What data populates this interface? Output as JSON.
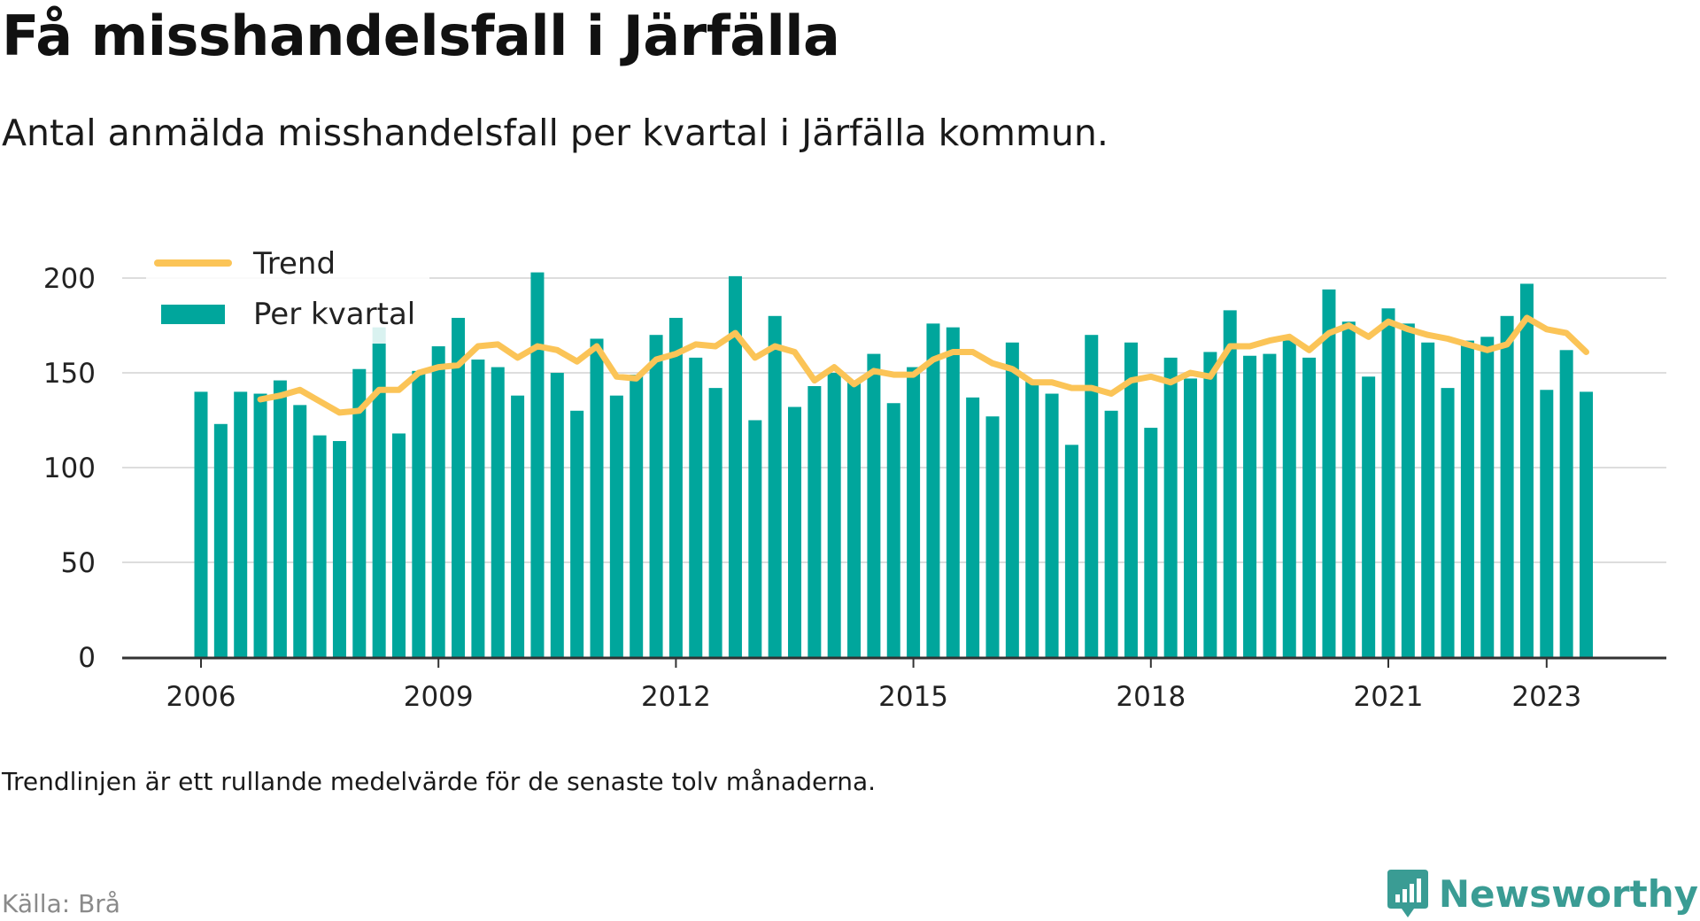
{
  "title": "Få misshandelsfall i Järfälla",
  "subtitle": "Antal anmälda misshandelsfall per kvartal i Järfälla kommun.",
  "note": "Trendlinjen är ett rullande medelvärde för de senaste tolv månaderna.",
  "source": "Källa: Brå",
  "brand": {
    "name": "Newsworthy",
    "icon": "newsworthy-logo-icon"
  },
  "colors": {
    "bars": "#00a69c",
    "trend": "#fbc457",
    "grid": "#dddddd",
    "axis": "#333333"
  },
  "legend": {
    "trend": "Trend",
    "bars": "Per kvartal"
  },
  "chart_data": {
    "type": "bar",
    "x_start": "2006 Q1",
    "x_tick_labels": [
      "2006",
      "2009",
      "2012",
      "2015",
      "2018",
      "2021",
      "2023"
    ],
    "y_ticks": [
      0,
      50,
      100,
      150,
      200
    ],
    "ylim": [
      0,
      215
    ],
    "grid": true,
    "legend_position": "top-left",
    "series": [
      {
        "name": "Per kvartal",
        "type": "bar",
        "values": [
          140,
          123,
          140,
          139,
          146,
          133,
          117,
          114,
          152,
          174,
          118,
          151,
          164,
          179,
          157,
          153,
          138,
          203,
          150,
          130,
          168,
          138,
          149,
          170,
          179,
          158,
          142,
          201,
          125,
          180,
          132,
          143,
          150,
          146,
          160,
          134,
          153,
          176,
          174,
          137,
          127,
          166,
          146,
          139,
          112,
          170,
          130,
          166,
          121,
          158,
          147,
          161,
          183,
          159,
          160,
          168,
          158,
          194,
          177,
          148,
          184,
          176,
          166,
          142,
          167,
          169,
          180,
          197,
          141,
          162,
          140
        ]
      },
      {
        "name": "Trend",
        "type": "line",
        "start_index": 3,
        "values": [
          136,
          138,
          141,
          135,
          129,
          130,
          141,
          141,
          150,
          153,
          154,
          164,
          165,
          158,
          164,
          162,
          156,
          164,
          148,
          147,
          157,
          160,
          165,
          164,
          171,
          158,
          164,
          161,
          146,
          153,
          144,
          151,
          149,
          149,
          157,
          161,
          161,
          155,
          152,
          145,
          145,
          142,
          142,
          139,
          146,
          148,
          145,
          150,
          148,
          164,
          164,
          167,
          169,
          162,
          171,
          175,
          169,
          177,
          173,
          170,
          168,
          165,
          162,
          165,
          179,
          173,
          171,
          161
        ]
      }
    ]
  }
}
